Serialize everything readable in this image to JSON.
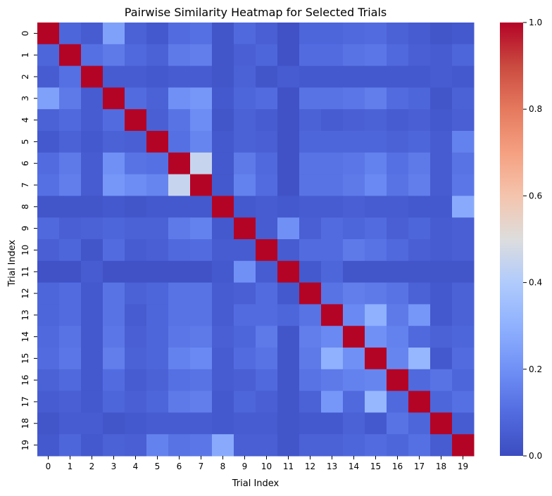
{
  "chart_data": {
    "type": "heatmap",
    "title": "Pairwise Similarity Heatmap for Selected Trials",
    "xlabel": "Trial Index",
    "ylabel": "Trial Index",
    "x_categories": [
      "0",
      "1",
      "2",
      "3",
      "4",
      "5",
      "6",
      "7",
      "8",
      "9",
      "10",
      "11",
      "12",
      "13",
      "14",
      "15",
      "16",
      "17",
      "18",
      "19"
    ],
    "y_categories": [
      "0",
      "1",
      "2",
      "3",
      "4",
      "5",
      "6",
      "7",
      "8",
      "9",
      "10",
      "11",
      "12",
      "13",
      "14",
      "15",
      "16",
      "17",
      "18",
      "19"
    ],
    "colormap": "coolwarm",
    "value_range": [
      0,
      1
    ],
    "colorbar_ticks": [
      "0.0",
      "0.2",
      "0.4",
      "0.6",
      "0.8",
      "1.0"
    ],
    "values": [
      [
        1.0,
        0.08,
        0.05,
        0.25,
        0.07,
        0.04,
        0.1,
        0.11,
        0.03,
        0.09,
        0.06,
        0.02,
        0.08,
        0.08,
        0.09,
        0.1,
        0.07,
        0.05,
        0.03,
        0.04
      ],
      [
        0.08,
        1.0,
        0.11,
        0.14,
        0.09,
        0.07,
        0.14,
        0.15,
        0.03,
        0.06,
        0.08,
        0.02,
        0.1,
        0.1,
        0.12,
        0.13,
        0.09,
        0.06,
        0.05,
        0.08
      ],
      [
        0.05,
        0.11,
        1.0,
        0.05,
        0.05,
        0.04,
        0.05,
        0.05,
        0.03,
        0.07,
        0.03,
        0.05,
        0.04,
        0.04,
        0.04,
        0.04,
        0.04,
        0.04,
        0.05,
        0.04
      ],
      [
        0.25,
        0.14,
        0.05,
        1.0,
        0.1,
        0.07,
        0.2,
        0.22,
        0.04,
        0.08,
        0.1,
        0.02,
        0.12,
        0.12,
        0.13,
        0.15,
        0.1,
        0.08,
        0.03,
        0.07
      ],
      [
        0.07,
        0.09,
        0.05,
        0.1,
        1.0,
        0.06,
        0.12,
        0.19,
        0.03,
        0.07,
        0.05,
        0.02,
        0.07,
        0.05,
        0.06,
        0.07,
        0.05,
        0.06,
        0.04,
        0.06
      ],
      [
        0.04,
        0.07,
        0.04,
        0.07,
        0.06,
        1.0,
        0.11,
        0.17,
        0.04,
        0.07,
        0.06,
        0.02,
        0.08,
        0.08,
        0.08,
        0.08,
        0.07,
        0.08,
        0.05,
        0.16
      ],
      [
        0.1,
        0.14,
        0.05,
        0.2,
        0.12,
        0.11,
        1.0,
        0.45,
        0.04,
        0.14,
        0.09,
        0.02,
        0.12,
        0.12,
        0.13,
        0.16,
        0.11,
        0.14,
        0.05,
        0.12
      ],
      [
        0.11,
        0.15,
        0.05,
        0.22,
        0.19,
        0.17,
        0.45,
        1.0,
        0.04,
        0.16,
        0.1,
        0.02,
        0.12,
        0.12,
        0.14,
        0.18,
        0.12,
        0.15,
        0.05,
        0.13
      ],
      [
        0.03,
        0.03,
        0.03,
        0.04,
        0.03,
        0.04,
        0.04,
        0.04,
        1.0,
        0.04,
        0.05,
        0.04,
        0.05,
        0.05,
        0.06,
        0.05,
        0.05,
        0.04,
        0.04,
        0.28
      ],
      [
        0.09,
        0.06,
        0.07,
        0.08,
        0.07,
        0.07,
        0.14,
        0.16,
        0.04,
        1.0,
        0.05,
        0.2,
        0.06,
        0.1,
        0.08,
        0.1,
        0.06,
        0.08,
        0.05,
        0.06
      ],
      [
        0.06,
        0.08,
        0.03,
        0.1,
        0.05,
        0.06,
        0.09,
        0.1,
        0.05,
        0.05,
        1.0,
        0.05,
        0.1,
        0.1,
        0.14,
        0.12,
        0.09,
        0.06,
        0.05,
        0.06
      ],
      [
        0.02,
        0.02,
        0.05,
        0.02,
        0.02,
        0.02,
        0.02,
        0.02,
        0.04,
        0.2,
        0.05,
        1.0,
        0.04,
        0.08,
        0.03,
        0.03,
        0.03,
        0.03,
        0.03,
        0.03
      ],
      [
        0.08,
        0.1,
        0.04,
        0.12,
        0.07,
        0.08,
        0.12,
        0.12,
        0.05,
        0.06,
        0.1,
        0.04,
        1.0,
        0.12,
        0.15,
        0.14,
        0.12,
        0.07,
        0.04,
        0.07
      ],
      [
        0.08,
        0.1,
        0.04,
        0.12,
        0.05,
        0.08,
        0.12,
        0.12,
        0.05,
        0.1,
        0.1,
        0.08,
        0.12,
        1.0,
        0.18,
        0.3,
        0.14,
        0.22,
        0.04,
        0.07
      ],
      [
        0.09,
        0.12,
        0.04,
        0.13,
        0.06,
        0.08,
        0.13,
        0.14,
        0.06,
        0.08,
        0.14,
        0.03,
        0.15,
        0.18,
        1.0,
        0.2,
        0.16,
        0.09,
        0.07,
        0.08
      ],
      [
        0.1,
        0.13,
        0.04,
        0.15,
        0.07,
        0.08,
        0.16,
        0.18,
        0.05,
        0.1,
        0.12,
        0.03,
        0.14,
        0.3,
        0.2,
        1.0,
        0.17,
        0.32,
        0.04,
        0.1
      ],
      [
        0.07,
        0.09,
        0.04,
        0.1,
        0.05,
        0.07,
        0.11,
        0.12,
        0.05,
        0.06,
        0.09,
        0.03,
        0.12,
        0.14,
        0.16,
        0.17,
        1.0,
        0.09,
        0.12,
        0.08
      ],
      [
        0.05,
        0.06,
        0.04,
        0.08,
        0.06,
        0.08,
        0.14,
        0.15,
        0.04,
        0.08,
        0.06,
        0.03,
        0.07,
        0.22,
        0.09,
        0.32,
        0.09,
        1.0,
        0.08,
        0.11
      ],
      [
        0.03,
        0.05,
        0.05,
        0.03,
        0.04,
        0.05,
        0.05,
        0.05,
        0.04,
        0.05,
        0.05,
        0.03,
        0.04,
        0.04,
        0.07,
        0.04,
        0.12,
        0.08,
        1.0,
        0.05
      ],
      [
        0.04,
        0.08,
        0.04,
        0.07,
        0.06,
        0.16,
        0.12,
        0.13,
        0.28,
        0.06,
        0.06,
        0.03,
        0.07,
        0.07,
        0.08,
        0.1,
        0.08,
        0.11,
        0.05,
        1.0
      ]
    ]
  }
}
